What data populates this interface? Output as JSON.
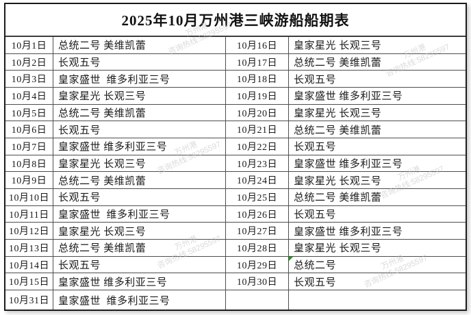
{
  "title": "2025年10月万州港三峡游船船期表",
  "watermark": {
    "line1": "万州港",
    "line2": "咨询热线:58295597"
  },
  "rows": [
    {
      "date_left": "10月1日",
      "ships_left": "总统二号 美维凯蕾",
      "date_right": "10月16日",
      "ships_right": "皇家星光 长观三号"
    },
    {
      "date_left": "10月2日",
      "ships_left": "长观五号",
      "date_right": "10月17日",
      "ships_right": "总统二号 美维凯蕾"
    },
    {
      "date_left": "10月3日",
      "ships_left": "皇家盛世  维多利亚三号",
      "date_right": "10月18日",
      "ships_right": "长观五号"
    },
    {
      "date_left": "10月4日",
      "ships_left": "皇家星光 长观三号",
      "date_right": "10月19日",
      "ships_right": "皇家盛世 维多利亚三号"
    },
    {
      "date_left": "10月5日",
      "ships_left": "总统二号 美维凯蕾",
      "date_right": "10月20日",
      "ships_right": "皇家星光 长观三号"
    },
    {
      "date_left": "10月6日",
      "ships_left": "长观五号",
      "date_right": "10月21日",
      "ships_right": "总统二号 美维凯蕾"
    },
    {
      "date_left": "10月7日",
      "ships_left": "皇家盛世 维多利亚三号",
      "date_right": "10月22日",
      "ships_right": "长观五号"
    },
    {
      "date_left": "10月8日",
      "ships_left": "皇家星光 长观三号",
      "date_right": "10月23日",
      "ships_right": "皇家盛世 维多利亚三号"
    },
    {
      "date_left": "10月9日",
      "ships_left": "总统二号 美维凯蕾",
      "date_right": "10月24日",
      "ships_right": "皇家星光 长观三号"
    },
    {
      "date_left": "10月10日",
      "ships_left": "长观五号",
      "date_right": "10月25日",
      "ships_right": "总统二号 美维凯蕾"
    },
    {
      "date_left": "10月11日",
      "ships_left": "皇家盛世  维多利亚三号",
      "date_right": "10月26日",
      "ships_right": "长观五号"
    },
    {
      "date_left": "10月12日",
      "ships_left": "皇家星光 长观三号",
      "date_right": "10月27日",
      "ships_right": "皇家盛世 维多利亚三号"
    },
    {
      "date_left": "10月13日",
      "ships_left": "总统二号 美维凯蕾",
      "date_right": "10月28日",
      "ships_right": "皇家星光 长观三号"
    },
    {
      "date_left": "10月14日",
      "ships_left": "长观五号",
      "date_right": "10月29日",
      "ships_right": "总统二号",
      "marker_right": true
    },
    {
      "date_left": "10月15日",
      "ships_left": "皇家盛世 维多利亚三号",
      "date_right": "10月30日",
      "ships_right": "长观五号"
    },
    {
      "date_left": "10月31日",
      "ships_left": "皇家盛世  维多利亚三号",
      "date_right": "",
      "ships_right": ""
    }
  ]
}
